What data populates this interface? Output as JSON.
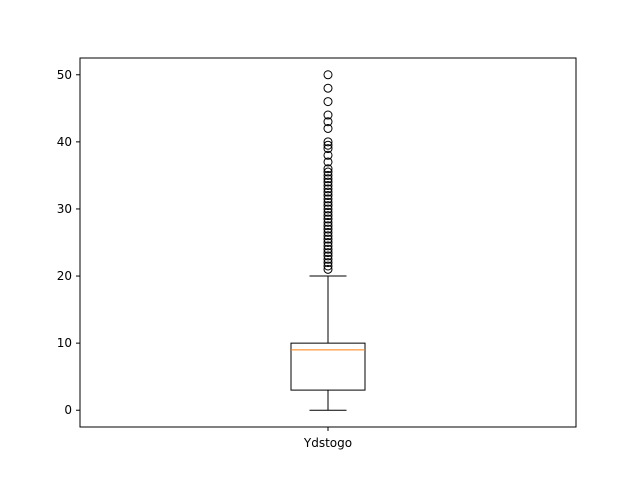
{
  "chart_data": {
    "type": "boxplot",
    "title": "",
    "xlabel": "",
    "ylabel": "",
    "categories": [
      "Ydstogo"
    ],
    "ylim": [
      -2.5,
      52.5
    ],
    "y_ticks": [
      0,
      10,
      20,
      30,
      40,
      50
    ],
    "grid": false,
    "boxes": [
      {
        "name": "Ydstogo",
        "whisker_low": 0,
        "q1": 3,
        "median": 9,
        "q3": 10,
        "whisker_high": 20,
        "outliers": [
          21,
          21.5,
          22,
          22.5,
          23,
          23.5,
          24,
          24.5,
          25,
          25.5,
          26,
          26.5,
          27,
          27.5,
          28,
          28.5,
          29,
          29.5,
          30,
          30.5,
          31,
          31.5,
          32,
          32.5,
          33,
          33.5,
          34,
          34.5,
          35,
          35.5,
          36,
          37,
          38,
          39,
          39.5,
          40,
          42,
          43,
          44,
          46,
          48,
          50
        ]
      }
    ],
    "colors": {
      "box": "#000000",
      "median": "#ff7f0e",
      "outlier": "#000000"
    }
  }
}
